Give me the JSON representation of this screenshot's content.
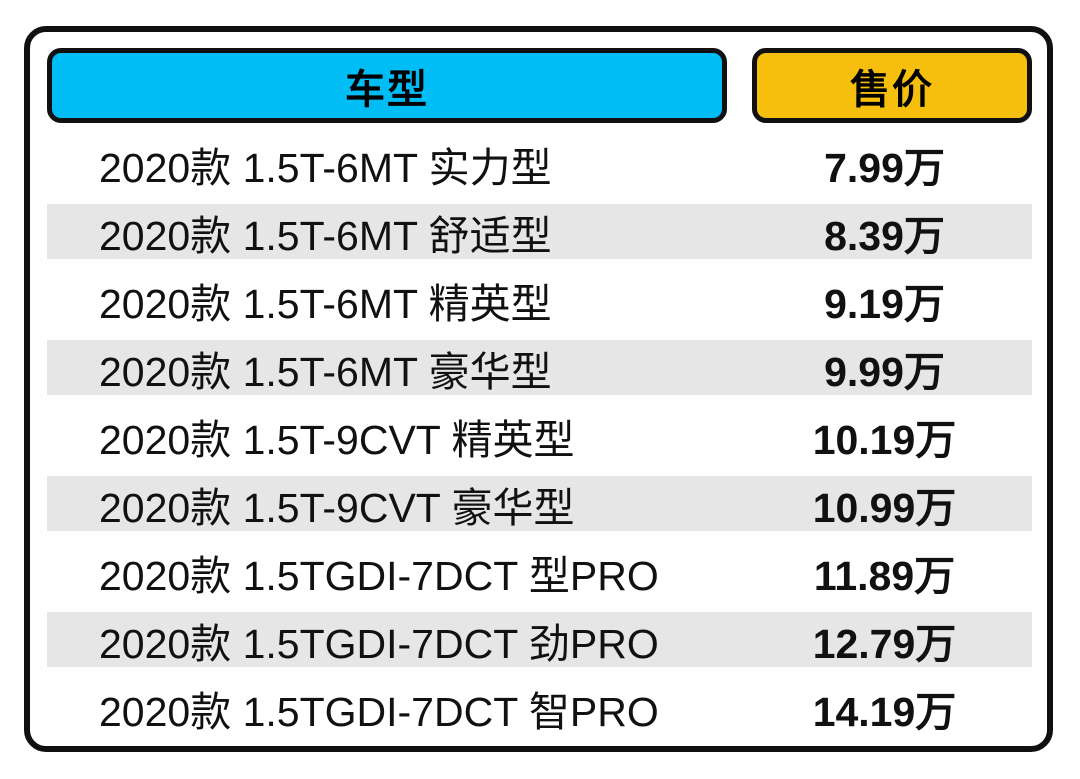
{
  "table": {
    "columns": [
      {
        "label": "车型",
        "color": "#00bdf5"
      },
      {
        "label": "售价",
        "color": "#f6bf0e"
      }
    ],
    "rows": [
      {
        "model": "2020款 1.5T-6MT 实力型",
        "price": "7.99万"
      },
      {
        "model": "2020款 1.5T-6MT 舒适型",
        "price": "8.39万"
      },
      {
        "model": "2020款 1.5T-6MT 精英型",
        "price": "9.19万"
      },
      {
        "model": "2020款 1.5T-6MT 豪华型",
        "price": "9.99万"
      },
      {
        "model": "2020款 1.5T-9CVT 精英型",
        "price": "10.19万"
      },
      {
        "model": "2020款 1.5T-9CVT 豪华型",
        "price": "10.99万"
      },
      {
        "model": "2020款 1.5TGDI-7DCT 型PRO",
        "price": "11.89万"
      },
      {
        "model": "2020款 1.5TGDI-7DCT 劲PRO",
        "price": "12.79万"
      },
      {
        "model": "2020款 1.5TGDI-7DCT 智PRO",
        "price": "14.19万"
      }
    ],
    "stripe_color": "#e6e6e6",
    "border_color": "#101010"
  }
}
